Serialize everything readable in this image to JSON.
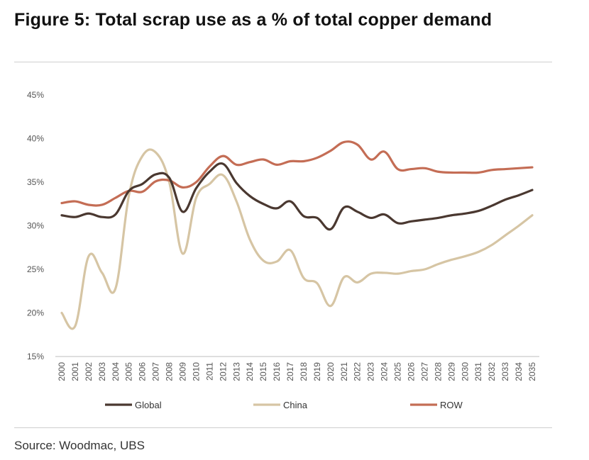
{
  "page": {
    "title": "Figure 5: Total scrap use as a % of total copper demand",
    "source": "Source: Woodmac, UBS"
  },
  "chart_data": {
    "type": "line",
    "title": "Figure 5: Total scrap use as a % of total copper demand",
    "xlabel": "",
    "ylabel": "",
    "ylim": [
      15,
      45
    ],
    "yticks": [
      15,
      20,
      25,
      30,
      35,
      40,
      45
    ],
    "ytick_labels": [
      "15%",
      "20%",
      "25%",
      "30%",
      "35%",
      "40%",
      "45%"
    ],
    "grid": false,
    "legend_position": "bottom",
    "categories": [
      "2000",
      "2001",
      "2002",
      "2003",
      "2004",
      "2005",
      "2006",
      "2007",
      "2008",
      "2009",
      "2010",
      "2011",
      "2012",
      "2013",
      "2014",
      "2015",
      "2016",
      "2017",
      "2018",
      "2019",
      "2020",
      "2021",
      "2022",
      "2023",
      "2024",
      "2025",
      "2026",
      "2027",
      "2028",
      "2029",
      "2030",
      "2031",
      "2032",
      "2033",
      "2034",
      "2035"
    ],
    "series": [
      {
        "name": "Global",
        "color": "#4a3830",
        "values": [
          31.2,
          31.0,
          31.4,
          31.0,
          31.3,
          34.0,
          34.8,
          35.9,
          35.5,
          31.6,
          34.3,
          36.2,
          37.1,
          34.9,
          33.4,
          32.5,
          32.0,
          32.8,
          31.1,
          30.9,
          29.6,
          32.1,
          31.6,
          30.9,
          31.3,
          30.3,
          30.5,
          30.7,
          30.9,
          31.2,
          31.4,
          31.7,
          32.3,
          33.0,
          33.5,
          34.1
        ]
      },
      {
        "name": "China",
        "color": "#d6c5a4",
        "values": [
          20.0,
          18.5,
          26.5,
          24.6,
          22.8,
          33.5,
          38.0,
          38.4,
          35.0,
          26.8,
          33.2,
          34.8,
          35.8,
          32.8,
          28.4,
          26.0,
          25.9,
          27.2,
          24.0,
          23.4,
          20.8,
          24.1,
          23.5,
          24.5,
          24.6,
          24.5,
          24.8,
          25.0,
          25.6,
          26.1,
          26.5,
          27.0,
          27.8,
          28.9,
          30.0,
          31.2
        ]
      },
      {
        "name": "ROW",
        "color": "#c46d55",
        "values": [
          32.6,
          32.8,
          32.4,
          32.4,
          33.2,
          34.0,
          33.9,
          35.1,
          35.2,
          34.4,
          35.0,
          36.8,
          38.0,
          37.0,
          37.3,
          37.6,
          37.0,
          37.4,
          37.4,
          37.8,
          38.6,
          39.6,
          39.3,
          37.6,
          38.5,
          36.5,
          36.5,
          36.6,
          36.2,
          36.1,
          36.1,
          36.1,
          36.4,
          36.5,
          36.6,
          36.7
        ]
      }
    ]
  }
}
